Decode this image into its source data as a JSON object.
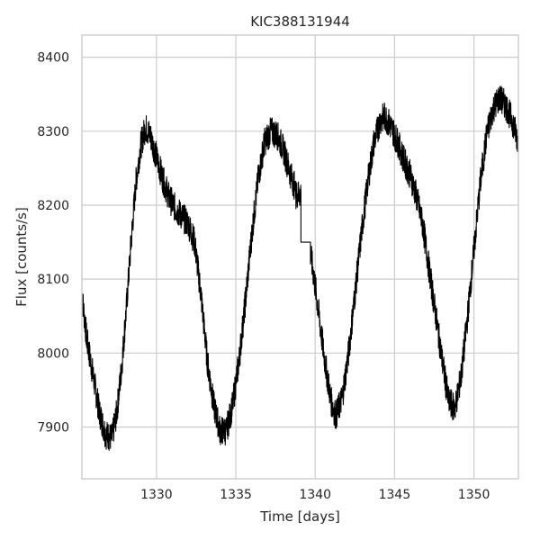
{
  "chart_data": {
    "type": "line",
    "title": "KIC388131944",
    "xlabel": "Time [days]",
    "ylabel": "Flux [counts/s]",
    "xlim": [
      1325.3,
      1352.8
    ],
    "ylim": [
      7830,
      8430
    ],
    "xticks": [
      1330,
      1335,
      1340,
      1345,
      1350
    ],
    "yticks": [
      7900,
      8000,
      8100,
      8200,
      8300,
      8400
    ],
    "grid": true,
    "legend": "none",
    "series_color": "#000000",
    "series": [
      {
        "x": [
          1325.3,
          1325.6,
          1326.0,
          1326.4,
          1326.8,
          1327.2,
          1327.5,
          1327.8,
          1328.1,
          1328.4,
          1328.7,
          1329.0,
          1329.3,
          1329.6,
          1330.0,
          1330.4,
          1330.8,
          1331.2,
          1331.6,
          1332.0,
          1332.4,
          1332.8,
          1333.2,
          1333.6,
          1334.0,
          1334.4,
          1334.8,
          1335.2,
          1335.6,
          1336.0,
          1336.4,
          1336.8,
          1337.2,
          1337.6,
          1338.0,
          1338.4,
          1338.7,
          1338.75,
          1339.1,
          1339.1,
          1339.7,
          1339.7,
          1340.0,
          1340.3,
          1340.6,
          1341.0,
          1341.3,
          1341.7,
          1342.1,
          1342.5,
          1342.9,
          1343.3,
          1343.7,
          1344.1,
          1344.4,
          1344.8,
          1345.2,
          1345.6,
          1346.0,
          1346.4,
          1346.8,
          1347.2,
          1347.6,
          1348.0,
          1348.4,
          1348.8,
          1349.2,
          1349.6,
          1350.0,
          1350.4,
          1350.8,
          1351.2,
          1351.6,
          1352.0,
          1352.4,
          1352.8
        ],
        "y": [
          8080,
          8020,
          7970,
          7920,
          7890,
          7885,
          7920,
          7980,
          8060,
          8150,
          8230,
          8280,
          8305,
          8295,
          8265,
          8235,
          8210,
          8195,
          8185,
          8175,
          8150,
          8080,
          7990,
          7930,
          7895,
          7895,
          7930,
          7990,
          8070,
          8160,
          8235,
          8285,
          8300,
          8295,
          8275,
          8245,
          8225,
          8215,
          8215,
          8150,
          8150,
          8135,
          8090,
          8040,
          7990,
          7935,
          7915,
          7940,
          8000,
          8080,
          8160,
          8230,
          8285,
          8315,
          8320,
          8305,
          8285,
          8260,
          8240,
          8210,
          8170,
          8110,
          8050,
          7990,
          7935,
          7925,
          7970,
          8050,
          8140,
          8230,
          8295,
          8330,
          8345,
          8335,
          8315,
          8285
        ]
      }
    ]
  }
}
